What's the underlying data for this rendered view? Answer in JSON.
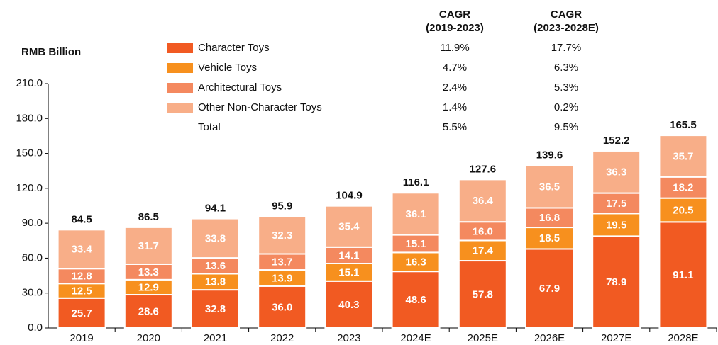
{
  "chart_data": {
    "type": "stacked_bar",
    "y_axis_label": "RMB Billion",
    "categories": [
      "2019",
      "2020",
      "2021",
      "2022",
      "2023",
      "2024E",
      "2025E",
      "2026E",
      "2027E",
      "2028E"
    ],
    "series": [
      {
        "name": "Character Toys",
        "color": "#f15a22",
        "values": [
          25.7,
          28.6,
          32.8,
          36.0,
          40.3,
          48.6,
          57.8,
          67.9,
          78.9,
          91.1
        ],
        "value_labels": [
          "25.7",
          "28.6",
          "32.8",
          "36.0",
          "40.3",
          "48.6",
          "57.8",
          "67.9",
          "78.9",
          "91.1"
        ]
      },
      {
        "name": "Vehicle Toys",
        "color": "#f7901e",
        "values": [
          12.5,
          12.9,
          13.8,
          13.9,
          15.1,
          16.3,
          17.4,
          18.5,
          19.5,
          20.5
        ],
        "value_labels": [
          "12.5",
          "12.9",
          "13.8",
          "13.9",
          "15.1",
          "16.3",
          "17.4",
          "18.5",
          "19.5",
          "20.5"
        ]
      },
      {
        "name": "Architectural Toys",
        "color": "#f4895f",
        "values": [
          12.8,
          13.3,
          13.6,
          13.7,
          14.1,
          15.1,
          16.0,
          16.8,
          17.5,
          18.2
        ],
        "value_labels": [
          "12.8",
          "13.3",
          "13.6",
          "13.7",
          "14.1",
          "15.1",
          "16.0",
          "16.8",
          "17.5",
          "18.2"
        ]
      },
      {
        "name": "Other Non-Character Toys",
        "color": "#f8ae88",
        "values": [
          33.4,
          31.7,
          33.8,
          32.3,
          35.4,
          36.1,
          36.4,
          36.5,
          36.3,
          35.7
        ],
        "value_labels": [
          "33.4",
          "31.7",
          "33.8",
          "32.3",
          "35.4",
          "36.1",
          "36.4",
          "36.5",
          "36.3",
          "35.7"
        ]
      }
    ],
    "totals": [
      84.5,
      86.5,
      94.1,
      95.9,
      104.9,
      116.1,
      127.6,
      139.6,
      152.2,
      165.5
    ],
    "total_label": "Total",
    "cagr_columns": [
      {
        "title": "CAGR",
        "period": "(2019-2023)",
        "values": [
          "11.9%",
          "4.7%",
          "2.4%",
          "1.4%",
          "5.5%"
        ]
      },
      {
        "title": "CAGR",
        "period": "(2023-2028E)",
        "values": [
          "17.7%",
          "6.3%",
          "5.3%",
          "0.2%",
          "9.5%"
        ]
      }
    ],
    "ylim": [
      0,
      210
    ],
    "yticks": [
      {
        "value": 0,
        "label": "0.0"
      },
      {
        "value": 30,
        "label": "30.0"
      },
      {
        "value": 60,
        "label": "60.0"
      },
      {
        "value": 90,
        "label": "90.0"
      },
      {
        "value": 120,
        "label": "120.0"
      },
      {
        "value": 150,
        "label": "150.0"
      },
      {
        "value": 180,
        "label": "180.0"
      },
      {
        "value": 210,
        "label": "210.0"
      }
    ],
    "grid": false
  }
}
